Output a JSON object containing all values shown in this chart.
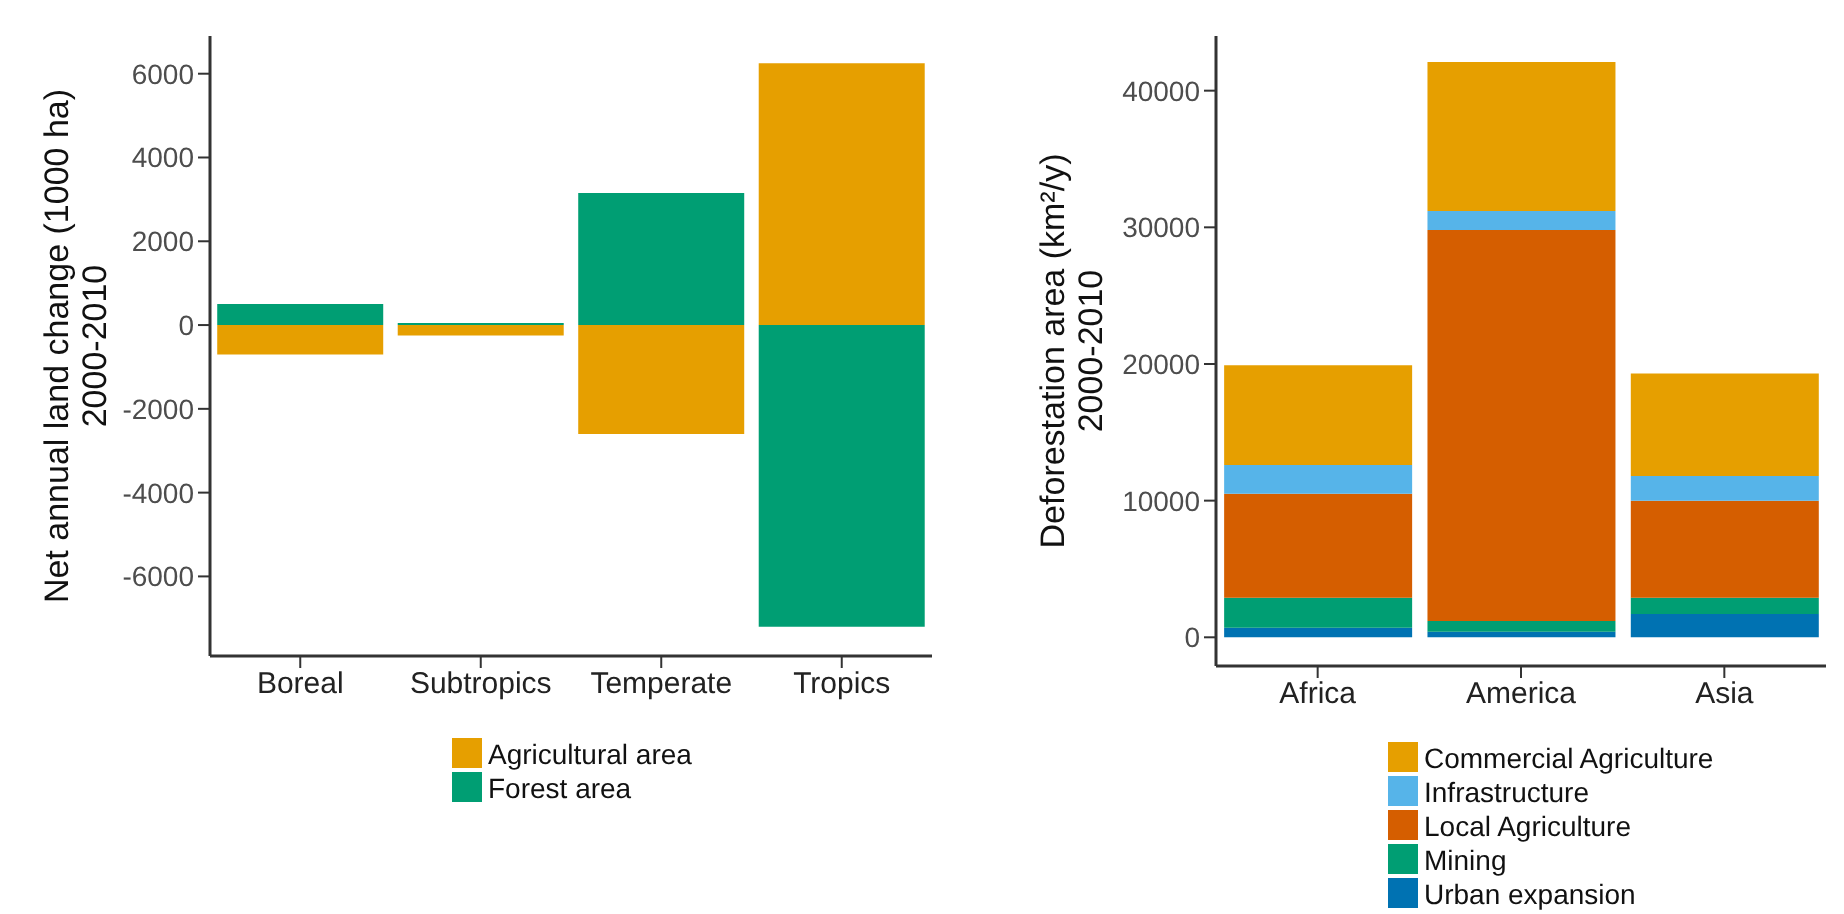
{
  "chart_data": [
    {
      "type": "bar",
      "ylabel": "Net annual land change (1000 ha)\n2000-2010",
      "categories": [
        "Boreal",
        "Subtropics",
        "Temperate",
        "Tropics"
      ],
      "stacked": true,
      "ylim": [
        -7900,
        6900
      ],
      "yticks": [
        -6000,
        -4000,
        -2000,
        0,
        2000,
        4000,
        6000
      ],
      "grid": false,
      "legend": "bottom",
      "series": [
        {
          "name": "Agricultural area",
          "color": "#e69f00",
          "values": [
            -700,
            -250,
            -2600,
            6250
          ]
        },
        {
          "name": "Forest area",
          "color": "#009e73",
          "values": [
            500,
            50,
            3150,
            -7200
          ]
        }
      ]
    },
    {
      "type": "bar",
      "ylabel": "Deforestation area (km²/y)\n2000-2010",
      "categories": [
        "Africa",
        "America",
        "Asia"
      ],
      "stacked": true,
      "ylim": [
        -2100,
        44000
      ],
      "yticks": [
        0,
        10000,
        20000,
        30000,
        40000
      ],
      "grid": false,
      "legend": "bottom right",
      "series": [
        {
          "name": "Urban expansion",
          "color": "#0072b2",
          "values": [
            700,
            400,
            1700
          ]
        },
        {
          "name": "Mining",
          "color": "#009e73",
          "values": [
            2200,
            800,
            1200
          ]
        },
        {
          "name": "Local Agriculture",
          "color": "#d55e00",
          "values": [
            7600,
            28600,
            7100
          ]
        },
        {
          "name": "Infrastructure",
          "color": "#56b4e9",
          "values": [
            2100,
            1400,
            1800
          ]
        },
        {
          "name": "Commercial Agriculture",
          "color": "#e69f00",
          "values": [
            7300,
            10900,
            7500
          ]
        }
      ]
    }
  ]
}
